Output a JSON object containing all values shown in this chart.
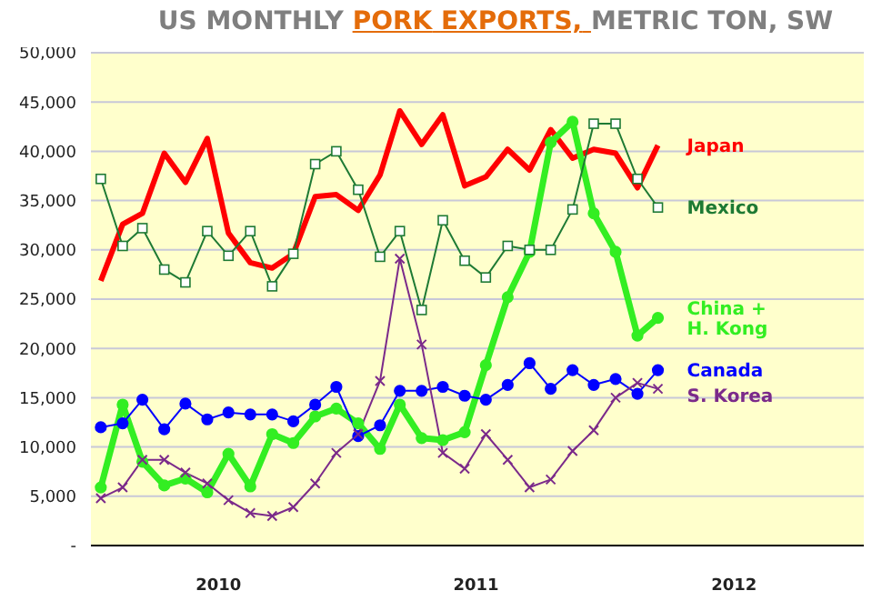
{
  "chart_data": {
    "type": "line",
    "title": "US MONTHLY PORK EXPORTS, METRIC TON, SW",
    "x": [
      "2010-01-15",
      "2010-02-15",
      "2010-03-15",
      "2010-04-15",
      "2010-05-15",
      "2010-06-15",
      "2010-07-15",
      "2010-08-15",
      "2010-09-15",
      "2010-10-15",
      "2010-11-15",
      "2010-12-15",
      "2011-01-15",
      "2011-02-15",
      "2011-03-15",
      "2011-04-15",
      "2011-05-15",
      "2011-06-15",
      "2011-07-15",
      "2011-08-15",
      "2011-09-15",
      "2011-10-15",
      "2011-11-15",
      "2011-12-15",
      "2012-01-15",
      "2012-02-15",
      "2012-03-15"
    ],
    "series": [
      {
        "name": "Japan",
        "color": "#ff0000",
        "marker": "none",
        "values": [
          26850,
          32600,
          33700,
          39800,
          36850,
          41300,
          31700,
          28700,
          28150,
          29600,
          35400,
          35600,
          34000,
          37600,
          44100,
          40700,
          43700,
          36500,
          37400,
          40200,
          38100,
          42200,
          39300,
          40200,
          39800,
          36300,
          40600
        ]
      },
      {
        "name": "Mexico",
        "color": "#1e7a34",
        "marker": "square",
        "values": [
          37200,
          30400,
          32200,
          28000,
          26700,
          31900,
          29400,
          31900,
          26300,
          29600,
          38700,
          40000,
          36100,
          29300,
          31900,
          23900,
          33000,
          28900,
          27200,
          30400,
          30000,
          30000,
          34100,
          42800,
          42800,
          37200,
          34300
        ]
      },
      {
        "name": "China + H. Kong",
        "color": "#33ee22",
        "marker": "circle",
        "values": [
          5900,
          14300,
          8500,
          6100,
          6800,
          5400,
          9300,
          6000,
          11300,
          10400,
          13100,
          13900,
          12400,
          9800,
          14300,
          10900,
          10700,
          11500,
          18300,
          25200,
          29800,
          40900,
          43000,
          33700,
          29800,
          21300,
          23100
        ]
      },
      {
        "name": "Canada",
        "color": "#0000ff",
        "marker": "circle",
        "values": [
          12000,
          12400,
          14800,
          11800,
          14400,
          12800,
          13500,
          13300,
          13300,
          12600,
          14300,
          16100,
          11100,
          12200,
          15700,
          15700,
          16100,
          15200,
          14800,
          16300,
          18500,
          15900,
          17800,
          16300,
          16900,
          15400,
          17800
        ]
      },
      {
        "name": "S. Korea",
        "color": "#7b2a8a",
        "marker": "cross",
        "values": [
          4800,
          5900,
          8700,
          8700,
          7400,
          6300,
          4600,
          3300,
          3000,
          3900,
          6300,
          9400,
          11300,
          16700,
          29100,
          20400,
          9400,
          7800,
          11300,
          8700,
          5900,
          6700,
          9600,
          11700,
          15000,
          16500,
          15900
        ]
      }
    ],
    "xlim": [
      "2010-01-01",
      "2013-01-01"
    ],
    "xticks": [
      {
        "value": "2010-07-01",
        "label": "2010"
      },
      {
        "value": "2011-07-01",
        "label": "2011"
      },
      {
        "value": "2012-07-01",
        "label": "2012"
      }
    ],
    "ylim": [
      0,
      50000
    ],
    "yticks": [
      {
        "value": 0,
        "label": "-"
      },
      {
        "value": 5000,
        "label": "5,000"
      },
      {
        "value": 10000,
        "label": "10,000"
      },
      {
        "value": 15000,
        "label": "15,000"
      },
      {
        "value": 20000,
        "label": "20,000"
      },
      {
        "value": 25000,
        "label": "25,000"
      },
      {
        "value": 30000,
        "label": "30,000"
      },
      {
        "value": 35000,
        "label": "35,000"
      },
      {
        "value": 40000,
        "label": "40,000"
      },
      {
        "value": 45000,
        "label": "45,000"
      },
      {
        "value": 50000,
        "label": "50,000"
      }
    ],
    "grid": "y",
    "legend": false
  }
}
